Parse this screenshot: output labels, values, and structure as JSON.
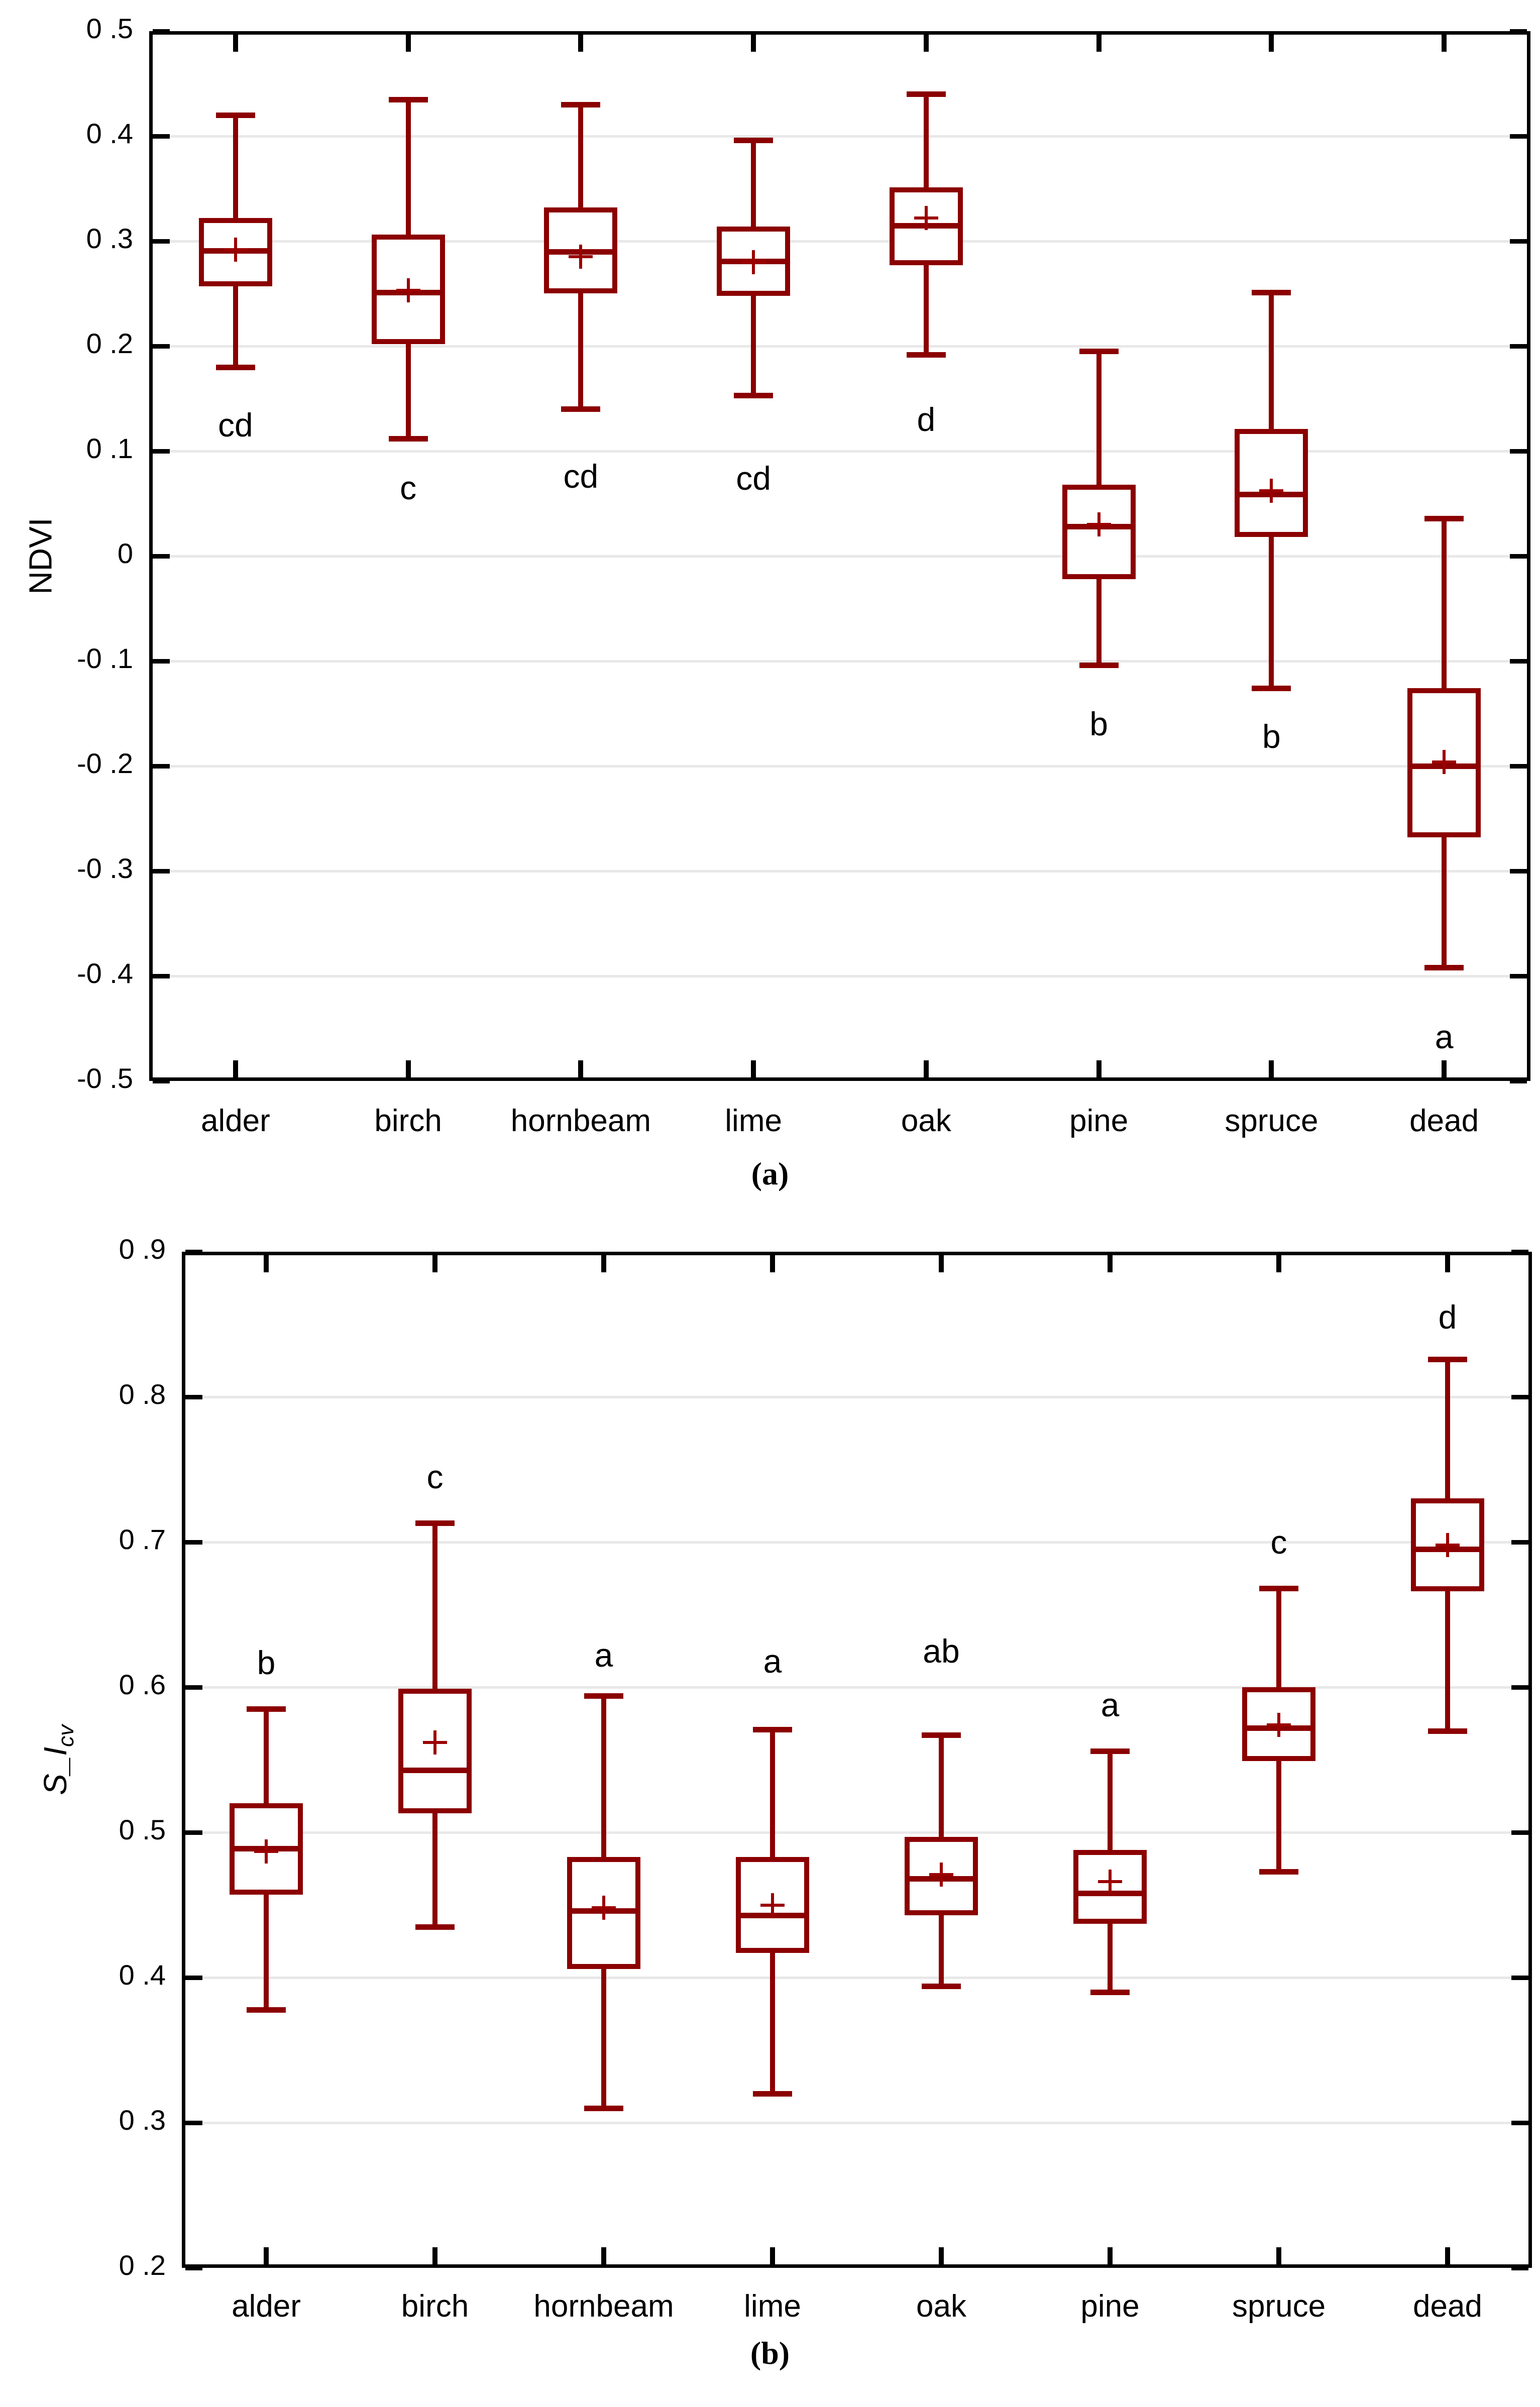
{
  "figure": {
    "background": "#ffffff",
    "captions": {
      "a": "(a)",
      "b": "(b)"
    }
  },
  "colors": {
    "box_stroke": "#8b0000",
    "mean_marker": "#9b0000",
    "gridline": "#e8e8e8",
    "axis": "#000000",
    "text": "#000000"
  },
  "chart_data": [
    {
      "panel": "a",
      "type": "box",
      "caption": "(a)",
      "title": "",
      "xlabel": "",
      "ylabel": "NDVI",
      "ylim": [
        -0.5,
        0.5
      ],
      "ytick_step": 0.1,
      "grid": true,
      "ytick_labels": [
        "0 .5",
        "0 .4",
        "0 .3",
        "0 .2",
        "0 .1",
        "0",
        "-0 .1",
        "-0 .2",
        "-0 .3",
        "-0 .4",
        "-0 .5"
      ],
      "categories": [
        "alder",
        "birch",
        "hornbeam",
        "lime",
        "oak",
        "pine",
        "spruce",
        "dead"
      ],
      "boxes": [
        {
          "category": "alder",
          "whisker_low": 0.18,
          "q1": 0.257,
          "median": 0.291,
          "mean": 0.292,
          "q3": 0.322,
          "whisker_high": 0.42,
          "letter": "cd",
          "letter_y": 0.125
        },
        {
          "category": "birch",
          "whisker_low": 0.112,
          "q1": 0.202,
          "median": 0.251,
          "mean": 0.253,
          "q3": 0.306,
          "whisker_high": 0.435,
          "letter": "c",
          "letter_y": 0.065
        },
        {
          "category": "hornbeam",
          "whisker_low": 0.14,
          "q1": 0.25,
          "median": 0.29,
          "mean": 0.285,
          "q3": 0.332,
          "whisker_high": 0.43,
          "letter": "cd",
          "letter_y": 0.076
        },
        {
          "category": "lime",
          "whisker_low": 0.153,
          "q1": 0.248,
          "median": 0.281,
          "mean": 0.28,
          "q3": 0.314,
          "whisker_high": 0.396,
          "letter": "cd",
          "letter_y": 0.074
        },
        {
          "category": "oak",
          "whisker_low": 0.192,
          "q1": 0.277,
          "median": 0.315,
          "mean": 0.322,
          "q3": 0.351,
          "whisker_high": 0.44,
          "letter": "d",
          "letter_y": 0.13
        },
        {
          "category": "pine",
          "whisker_low": -0.104,
          "q1": -0.022,
          "median": 0.028,
          "mean": 0.03,
          "q3": 0.068,
          "whisker_high": 0.195,
          "letter": "b",
          "letter_y": -0.16
        },
        {
          "category": "spruce",
          "whisker_low": -0.126,
          "q1": 0.018,
          "median": 0.059,
          "mean": 0.062,
          "q3": 0.121,
          "whisker_high": 0.251,
          "letter": "b",
          "letter_y": -0.172
        },
        {
          "category": "dead",
          "whisker_low": -0.392,
          "q1": -0.268,
          "median": -0.2,
          "mean": -0.196,
          "q3": -0.126,
          "whisker_high": 0.036,
          "letter": "a",
          "letter_y": -0.458
        }
      ]
    },
    {
      "panel": "b",
      "type": "box",
      "caption": "(b)",
      "title": "",
      "xlabel": "",
      "ylabel": "S_I_cv",
      "ylabel_main": "S_I",
      "ylabel_sub": "cv",
      "ylim": [
        0.2,
        0.9
      ],
      "ytick_step": 0.1,
      "grid": true,
      "ytick_labels": [
        "0 .9",
        "0 .8",
        "0 .7",
        "0 .6",
        "0 .5",
        "0 .4",
        "0 .3",
        "0 .2"
      ],
      "categories": [
        "alder",
        "birch",
        "hornbeam",
        "lime",
        "oak",
        "pine",
        "spruce",
        "dead"
      ],
      "boxes": [
        {
          "category": "alder",
          "whisker_low": 0.378,
          "q1": 0.457,
          "median": 0.489,
          "mean": 0.487,
          "q3": 0.52,
          "whisker_high": 0.585,
          "letter": "b",
          "letter_y": 0.617
        },
        {
          "category": "birch",
          "whisker_low": 0.435,
          "q1": 0.513,
          "median": 0.543,
          "mean": 0.562,
          "q3": 0.599,
          "whisker_high": 0.713,
          "letter": "c",
          "letter_y": 0.745
        },
        {
          "category": "hornbeam",
          "whisker_low": 0.31,
          "q1": 0.406,
          "median": 0.446,
          "mean": 0.448,
          "q3": 0.483,
          "whisker_high": 0.594,
          "letter": "a",
          "letter_y": 0.622
        },
        {
          "category": "lime",
          "whisker_low": 0.32,
          "q1": 0.417,
          "median": 0.443,
          "mean": 0.45,
          "q3": 0.483,
          "whisker_high": 0.571,
          "letter": "a",
          "letter_y": 0.618
        },
        {
          "category": "oak",
          "whisker_low": 0.394,
          "q1": 0.443,
          "median": 0.468,
          "mean": 0.471,
          "q3": 0.497,
          "whisker_high": 0.567,
          "letter": "ab",
          "letter_y": 0.625
        },
        {
          "category": "pine",
          "whisker_low": 0.39,
          "q1": 0.437,
          "median": 0.458,
          "mean": 0.466,
          "q3": 0.488,
          "whisker_high": 0.556,
          "letter": "a",
          "letter_y": 0.588
        },
        {
          "category": "spruce",
          "whisker_low": 0.473,
          "q1": 0.549,
          "median": 0.572,
          "mean": 0.574,
          "q3": 0.6,
          "whisker_high": 0.668,
          "letter": "c",
          "letter_y": 0.7
        },
        {
          "category": "dead",
          "whisker_low": 0.57,
          "q1": 0.666,
          "median": 0.695,
          "mean": 0.698,
          "q3": 0.73,
          "whisker_high": 0.826,
          "letter": "d",
          "letter_y": 0.855
        }
      ]
    }
  ]
}
